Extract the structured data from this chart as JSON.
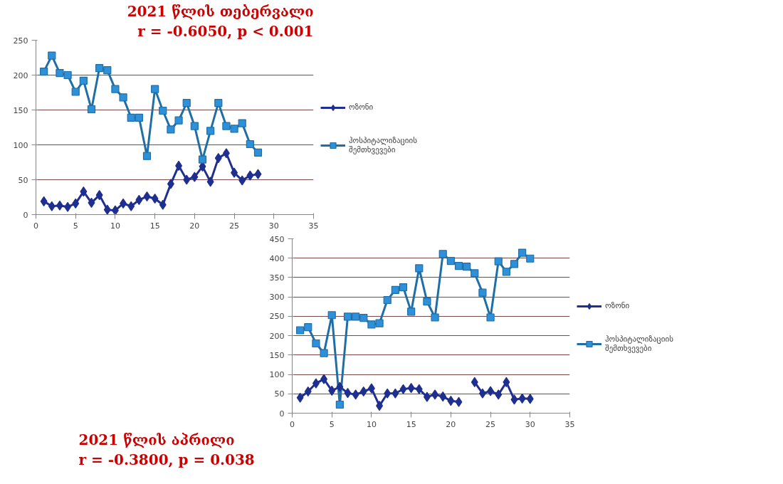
{
  "chart_data": [
    {
      "type": "line",
      "title": "2021 წლის თებერვალი",
      "subtitle": "r = -0.6050, p < 0.001",
      "x": [
        1,
        2,
        3,
        4,
        5,
        6,
        7,
        8,
        9,
        10,
        11,
        12,
        13,
        14,
        15,
        16,
        17,
        18,
        19,
        20,
        21,
        22,
        23,
        24,
        25,
        26,
        27,
        28
      ],
      "xlim": [
        0,
        35
      ],
      "xticks": [
        0,
        5,
        10,
        15,
        20,
        25,
        30,
        35
      ],
      "ylim": [
        0,
        250
      ],
      "yticks": [
        0,
        50,
        100,
        150,
        200,
        250
      ],
      "grid": "y",
      "legend": "right",
      "series": [
        {
          "name": "ოზონი",
          "color": "#1f2f8f",
          "marker": "diamond",
          "values": [
            19,
            12,
            13,
            11,
            16,
            33,
            17,
            28,
            7,
            6,
            16,
            12,
            21,
            26,
            23,
            14,
            44,
            70,
            50,
            54,
            69,
            47,
            81,
            88,
            60,
            49,
            56,
            58
          ]
        },
        {
          "name": "ჰოსპიტალიზაციის შემთხვევები",
          "color": "#1f6fa6",
          "marker": "square",
          "values": [
            205,
            228,
            203,
            200,
            176,
            192,
            151,
            210,
            207,
            180,
            168,
            139,
            139,
            84,
            180,
            149,
            122,
            135,
            160,
            127,
            79,
            120,
            160,
            127,
            123,
            131,
            101,
            89
          ]
        }
      ]
    },
    {
      "type": "line",
      "title": "2021 წლის აპრილი",
      "subtitle": "r = -0.3800, p = 0.038",
      "x": [
        1,
        2,
        3,
        4,
        5,
        6,
        7,
        8,
        9,
        10,
        11,
        12,
        13,
        14,
        15,
        16,
        17,
        18,
        19,
        20,
        21,
        22,
        23,
        24,
        25,
        26,
        27,
        28,
        29,
        30
      ],
      "xlim": [
        0,
        35
      ],
      "xticks": [
        0,
        5,
        10,
        15,
        20,
        25,
        30,
        35
      ],
      "ylim": [
        0,
        450
      ],
      "yticks": [
        0,
        50,
        100,
        150,
        200,
        250,
        300,
        350,
        400,
        450
      ],
      "grid": "y",
      "legend": "right",
      "series": [
        {
          "name": "ოზონი",
          "color": "#1f2f8f",
          "marker": "diamond",
          "values": [
            40,
            56,
            77,
            88,
            58,
            68,
            52,
            48,
            56,
            64,
            19,
            51,
            51,
            62,
            65,
            62,
            42,
            48,
            43,
            32,
            29,
            null,
            80,
            51,
            57,
            48,
            80,
            35,
            38,
            37
          ]
        },
        {
          "name": "ჰოსპიტალიზაციის შემთხვევები",
          "color": "#1f6fa6",
          "marker": "square",
          "values": [
            214,
            222,
            180,
            155,
            253,
            22,
            249,
            249,
            246,
            229,
            232,
            292,
            318,
            325,
            262,
            374,
            288,
            247,
            411,
            393,
            380,
            378,
            361,
            311,
            247,
            392,
            365,
            385,
            414,
            399
          ]
        }
      ]
    }
  ]
}
